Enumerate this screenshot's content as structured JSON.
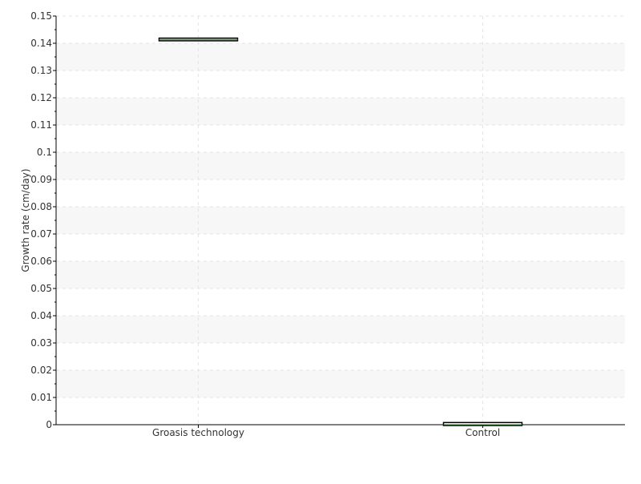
{
  "chart_data": {
    "type": "box",
    "ylabel": "Growth rate (cm/day)",
    "xlabel": "",
    "ylim": [
      0,
      0.15
    ],
    "yticks": [
      "0",
      "0.01",
      "0.02",
      "0.03",
      "0.04",
      "0.05",
      "0.06",
      "0.07",
      "0.08",
      "0.09",
      "0.1",
      "0.11",
      "0.12",
      "0.13",
      "0.14",
      "0.15"
    ],
    "categories": [
      "Groasis technology",
      "Control"
    ],
    "series": [
      {
        "values": [
          {
            "category": "Groasis technology",
            "min": 0.1412,
            "q1": 0.1412,
            "median": 0.1414,
            "q3": 0.1416,
            "max": 0.1416
          },
          {
            "category": "Control",
            "min": 0,
            "q1": 0,
            "median": 0,
            "q3": 0.0005,
            "max": 0.0005
          }
        ]
      }
    ],
    "grid": true,
    "colors": {
      "box": "#000000",
      "median": "#2a8a2a",
      "band": "#f7f7f7",
      "grid": "#e6e6e6"
    }
  }
}
